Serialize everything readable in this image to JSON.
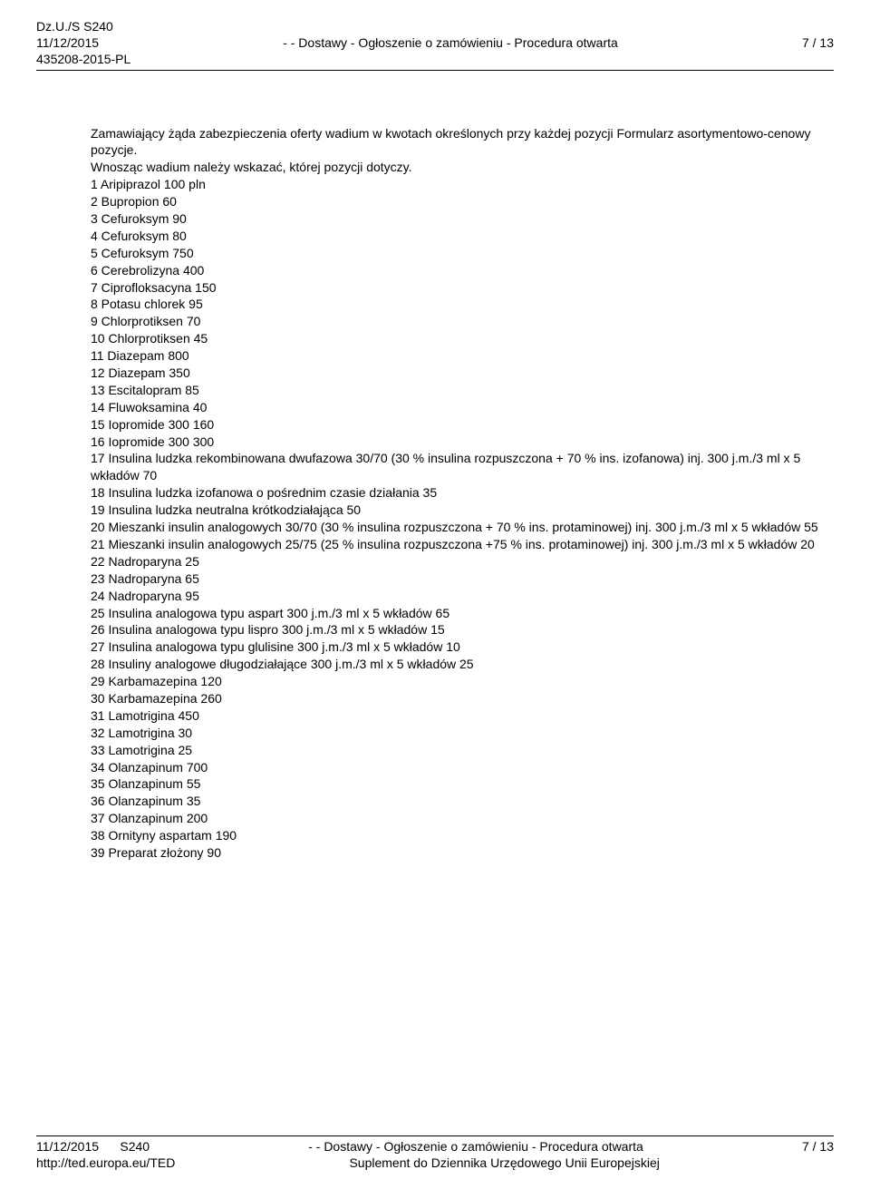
{
  "header": {
    "doc_ref_1": "Dz.U./S S240",
    "date": "11/12/2015",
    "doc_ref_2": "435208-2015-PL",
    "center": "- - Dostawy - Ogłoszenie o zamówieniu - Procedura otwarta",
    "page": "7 / 13"
  },
  "intro": {
    "line1": "Zamawiający żąda zabezpieczenia oferty wadium w kwotach określonych przy każdej pozycji Formularz asortymentowo-cenowy pozycje.",
    "line2": "Wnosząc wadium należy wskazać, której pozycji dotyczy."
  },
  "items": [
    "1 Aripiprazol 100 pln",
    "2 Bupropion 60",
    "3 Cefuroksym 90",
    "4 Cefuroksym 80",
    "5 Cefuroksym 750",
    "6 Cerebrolizyna 400",
    "7 Ciprofloksacyna 150",
    "8 Potasu chlorek 95",
    "9 Chlorprotiksen 70",
    "10 Chlorprotiksen 45",
    "11 Diazepam 800",
    "12 Diazepam 350",
    "13 Escitalopram 85",
    "14 Fluwoksamina 40",
    "15 Iopromide 300 160",
    "16 Iopromide 300 300",
    "17 Insulina ludzka rekombinowana dwufazowa 30/70 (30 % insulina rozpuszczona + 70 % ins. izofanowa) inj. 300 j.m./3 ml x 5 wkładów 70",
    "18 Insulina ludzka izofanowa o pośrednim czasie działania 35",
    "19 Insulina ludzka neutralna krótkodziałająca 50",
    "20 Mieszanki insulin analogowych 30/70 (30 % insulina rozpuszczona + 70 % ins. protaminowej) inj. 300 j.m./3 ml x 5 wkładów 55",
    "21 Mieszanki insulin analogowych 25/75 (25 % insulina rozpuszczona +75 % ins. protaminowej) inj. 300 j.m./3 ml x 5 wkładów 20",
    "22 Nadroparyna 25",
    "23 Nadroparyna 65",
    "24 Nadroparyna 95",
    "25 Insulina analogowa typu aspart 300 j.m./3 ml x 5 wkładów 65",
    "26 Insulina analogowa typu lispro 300 j.m./3 ml x 5 wkładów 15",
    "27 Insulina analogowa typu glulisine 300 j.m./3 ml x 5 wkładów 10",
    "28 Insuliny analogowe długodziałające 300 j.m./3 ml x 5 wkładów 25",
    "29 Karbamazepina 120",
    "30 Karbamazepina 260",
    "31 Lamotrigina 450",
    "32 Lamotrigina 30",
    "33 Lamotrigina 25",
    "34 Olanzapinum 700",
    "35 Olanzapinum 55",
    "36 Olanzapinum 35",
    "37 Olanzapinum 200",
    "38 Ornityny aspartam 190",
    "39 Preparat złożony 90"
  ],
  "footer": {
    "date": "11/12/2015",
    "issue": "S240",
    "url": "http://ted.europa.eu/TED",
    "center1": "- - Dostawy - Ogłoszenie o zamówieniu - Procedura otwarta",
    "center2": "Suplement do Dziennika Urzędowego Unii Europejskiej",
    "page": "7 / 13"
  }
}
